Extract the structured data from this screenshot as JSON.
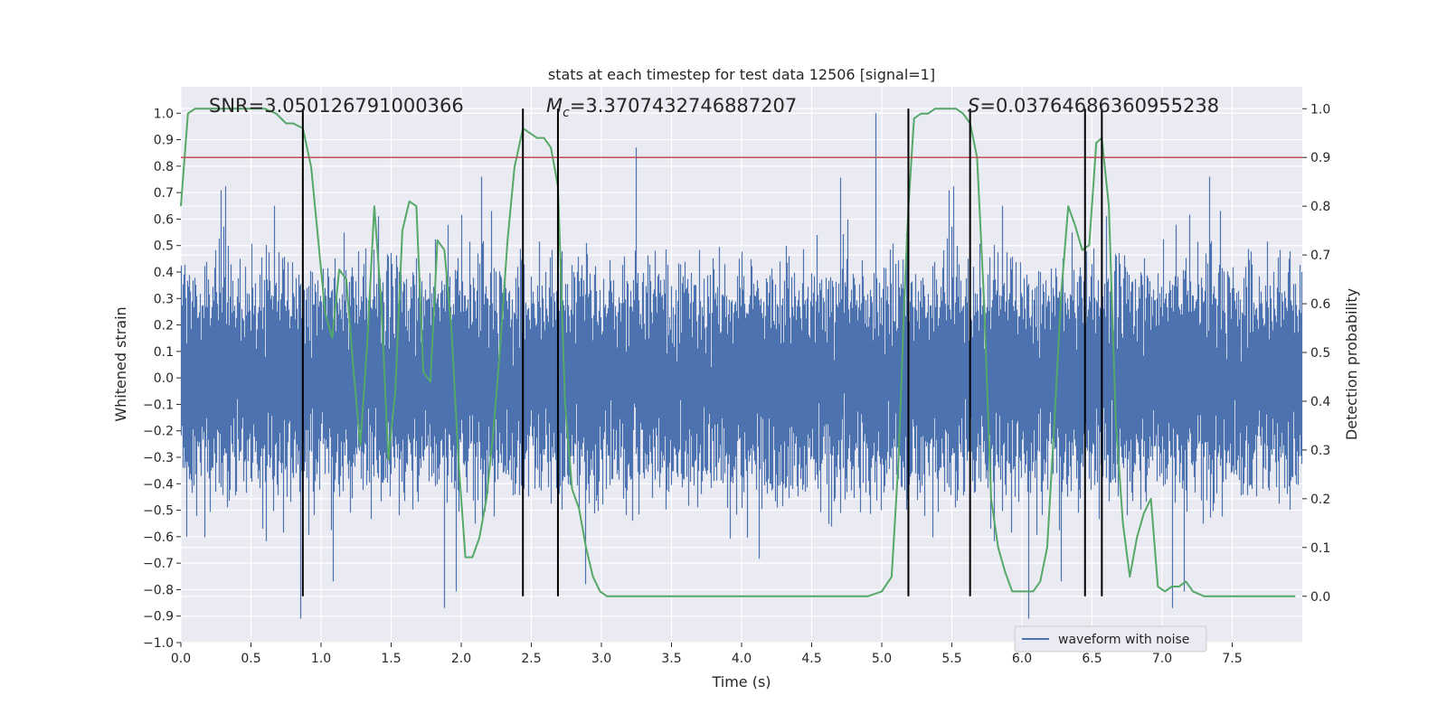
{
  "chart_data": {
    "type": "line",
    "title": "stats at each timestep for test data 12506 [signal=1]",
    "xlabel": "Time (s)",
    "ylabel": "Whitened strain",
    "y2label": "Detection probability",
    "xlim": [
      0,
      8
    ],
    "ylim": [
      -1.0,
      1.1
    ],
    "y2lim": [
      -0.095,
      1.045
    ],
    "x_ticks": [
      0.0,
      0.5,
      1.0,
      1.5,
      2.0,
      2.5,
      3.0,
      3.5,
      4.0,
      4.5,
      5.0,
      5.5,
      6.0,
      6.5,
      7.0,
      7.5
    ],
    "x_tick_labels": [
      "0.0",
      "0.5",
      "1.0",
      "1.5",
      "2.0",
      "2.5",
      "3.0",
      "3.5",
      "4.0",
      "4.5",
      "5.0",
      "5.5",
      "6.0",
      "6.5",
      "7.0",
      "7.5"
    ],
    "y_ticks": [
      -1.0,
      -0.9,
      -0.8,
      -0.7,
      -0.6,
      -0.5,
      -0.4,
      -0.3,
      -0.2,
      -0.1,
      0.0,
      0.1,
      0.2,
      0.3,
      0.4,
      0.5,
      0.6,
      0.7,
      0.8,
      0.9,
      1.0
    ],
    "y_tick_labels": [
      "−1.0",
      "−0.9",
      "−0.8",
      "−0.7",
      "−0.6",
      "−0.5",
      "−0.4",
      "−0.3",
      "−0.2",
      "−0.1",
      "0.0",
      "0.1",
      "0.2",
      "0.3",
      "0.4",
      "0.5",
      "0.6",
      "0.7",
      "0.8",
      "0.9",
      "1.0"
    ],
    "y2_ticks": [
      0.0,
      0.1,
      0.2,
      0.3,
      0.4,
      0.5,
      0.6,
      0.7,
      0.8,
      0.9,
      1.0
    ],
    "y2_tick_labels": [
      "0.0",
      "0.1",
      "0.2",
      "0.3",
      "0.4",
      "0.5",
      "0.6",
      "0.7",
      "0.8",
      "0.9",
      "1.0"
    ],
    "annotations": {
      "snr": "SNR=3.050126791000366",
      "mc_symbol": "M",
      "mc_sub": "c",
      "mc_value": "=3.3707432746887207",
      "s_symbol": "S",
      "s_value": "=0.03764686360955238"
    },
    "threshold": {
      "y2": 0.9,
      "color": "#c44e52"
    },
    "vertical_lines": [
      0.87,
      2.44,
      2.69,
      5.19,
      5.63,
      6.45,
      6.57
    ],
    "vline_y2_range": [
      0.0,
      1.0
    ],
    "legend": {
      "label": "waveform with noise",
      "position": "lower right"
    },
    "series": [
      {
        "name": "waveform with noise",
        "color": "#4c72b0",
        "sample_rate": 2048,
        "envelope": 0.42,
        "max_abs": 1.0
      },
      {
        "name": "detection probability",
        "color": "#55a868",
        "axis": "y2",
        "x": [
          0.0,
          0.05,
          0.1,
          0.2,
          0.3,
          0.4,
          0.5,
          0.6,
          0.68,
          0.75,
          0.8,
          0.87,
          0.93,
          0.98,
          1.03,
          1.08,
          1.13,
          1.18,
          1.23,
          1.28,
          1.33,
          1.38,
          1.43,
          1.48,
          1.53,
          1.58,
          1.63,
          1.68,
          1.73,
          1.78,
          1.83,
          1.88,
          1.93,
          1.98,
          2.03,
          2.08,
          2.13,
          2.18,
          2.23,
          2.28,
          2.33,
          2.38,
          2.44,
          2.49,
          2.54,
          2.59,
          2.64,
          2.69,
          2.74,
          2.79,
          2.84,
          2.89,
          2.94,
          2.99,
          3.04,
          3.09,
          3.14,
          3.2,
          3.3,
          3.4,
          3.6,
          3.8,
          4.0,
          4.2,
          4.4,
          4.6,
          4.8,
          4.9,
          5.0,
          5.07,
          5.12,
          5.16,
          5.19,
          5.23,
          5.28,
          5.33,
          5.38,
          5.43,
          5.48,
          5.53,
          5.58,
          5.63,
          5.68,
          5.73,
          5.78,
          5.83,
          5.88,
          5.93,
          5.98,
          6.03,
          6.08,
          6.13,
          6.18,
          6.23,
          6.28,
          6.33,
          6.38,
          6.43,
          6.48,
          6.53,
          6.57,
          6.62,
          6.67,
          6.72,
          6.77,
          6.82,
          6.87,
          6.92,
          6.97,
          7.02,
          7.07,
          7.12,
          7.17,
          7.22,
          7.3,
          7.4,
          7.5,
          7.6,
          7.7,
          7.8,
          7.95
        ],
        "values": [
          0.8,
          0.99,
          1.0,
          1.0,
          1.0,
          1.0,
          1.0,
          1.0,
          0.99,
          0.97,
          0.97,
          0.96,
          0.88,
          0.73,
          0.58,
          0.53,
          0.67,
          0.65,
          0.47,
          0.31,
          0.52,
          0.8,
          0.6,
          0.28,
          0.42,
          0.75,
          0.81,
          0.8,
          0.46,
          0.44,
          0.73,
          0.71,
          0.55,
          0.28,
          0.08,
          0.08,
          0.12,
          0.2,
          0.34,
          0.52,
          0.73,
          0.88,
          0.96,
          0.95,
          0.94,
          0.94,
          0.92,
          0.84,
          0.4,
          0.22,
          0.18,
          0.1,
          0.04,
          0.01,
          0.0,
          0.0,
          0.0,
          0.0,
          0.0,
          0.0,
          0.0,
          0.0,
          0.0,
          0.0,
          0.0,
          0.0,
          0.0,
          0.0,
          0.01,
          0.04,
          0.28,
          0.6,
          0.8,
          0.98,
          0.99,
          0.99,
          1.0,
          1.0,
          1.0,
          1.0,
          0.99,
          0.97,
          0.9,
          0.6,
          0.2,
          0.1,
          0.05,
          0.01,
          0.01,
          0.01,
          0.01,
          0.03,
          0.1,
          0.35,
          0.62,
          0.8,
          0.76,
          0.71,
          0.72,
          0.93,
          0.94,
          0.8,
          0.36,
          0.15,
          0.04,
          0.12,
          0.17,
          0.2,
          0.02,
          0.01,
          0.02,
          0.02,
          0.03,
          0.01,
          0.0,
          0.0,
          0.0,
          0.0,
          0.0,
          0.0,
          0.0
        ]
      }
    ]
  }
}
